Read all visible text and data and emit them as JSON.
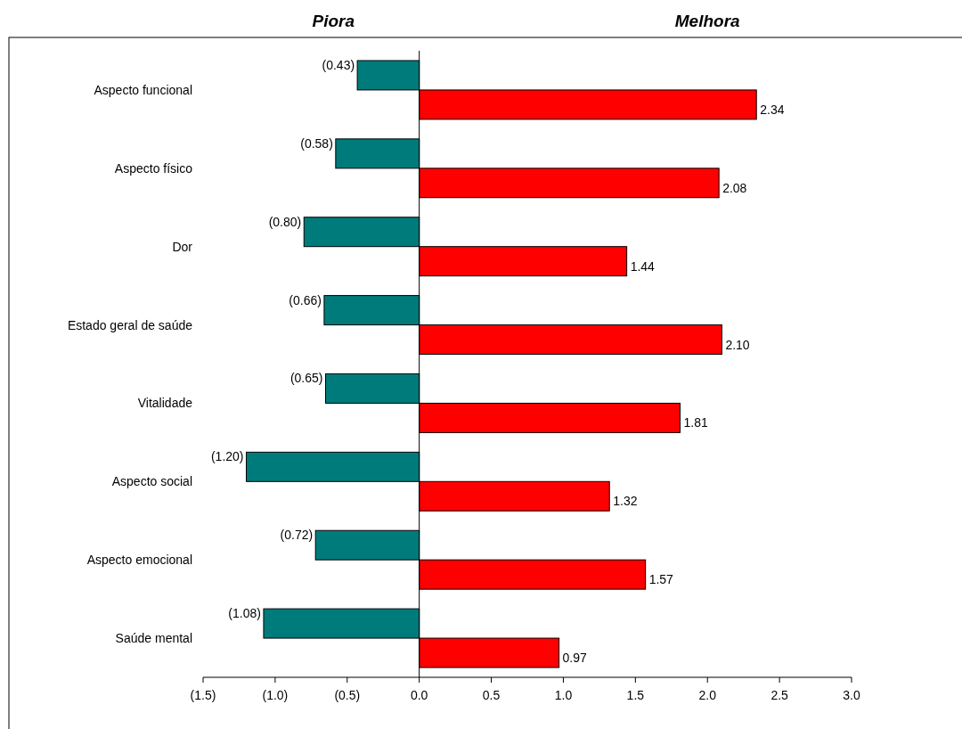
{
  "chart_data": {
    "type": "bar",
    "orientation": "horizontal",
    "annotations": [
      "Piora",
      "Melhora"
    ],
    "categories": [
      "Aspecto funcional",
      "Aspecto físico",
      "Dor",
      "Estado geral de saúde",
      "Vitalidade",
      "Aspecto social",
      "Aspecto emocional",
      "Saúde mental"
    ],
    "series": [
      {
        "color": "#007b7b",
        "values": [
          -0.43,
          -0.58,
          -0.8,
          -0.66,
          -0.65,
          -1.2,
          -0.72,
          -1.08
        ],
        "value_labels": [
          "(0.43)",
          "(0.58)",
          "(0.80)",
          "(0.66)",
          "(0.65)",
          "(1.20)",
          "(0.72)",
          "(1.08)"
        ]
      },
      {
        "color": "#ff0000",
        "values": [
          2.34,
          2.08,
          1.44,
          2.1,
          1.81,
          1.32,
          1.57,
          0.97
        ],
        "value_labels": [
          "2.34",
          "2.08",
          "1.44",
          "2.10",
          "1.81",
          "1.32",
          "1.57",
          "0.97"
        ]
      }
    ],
    "xlim": [
      -1.5,
      3.0
    ],
    "xticks": [
      {
        "value": -1.5,
        "label": "(1.5)"
      },
      {
        "value": -1.0,
        "label": "(1.0)"
      },
      {
        "value": -0.5,
        "label": "(0.5)"
      },
      {
        "value": 0,
        "label": "0.0"
      },
      {
        "value": 0.5,
        "label": "0.5"
      },
      {
        "value": 1.0,
        "label": "1.0"
      },
      {
        "value": 1.5,
        "label": "1.5"
      },
      {
        "value": 2.0,
        "label": "2.0"
      },
      {
        "value": 2.5,
        "label": "2.5"
      },
      {
        "value": 3.0,
        "label": "3.0"
      }
    ]
  }
}
